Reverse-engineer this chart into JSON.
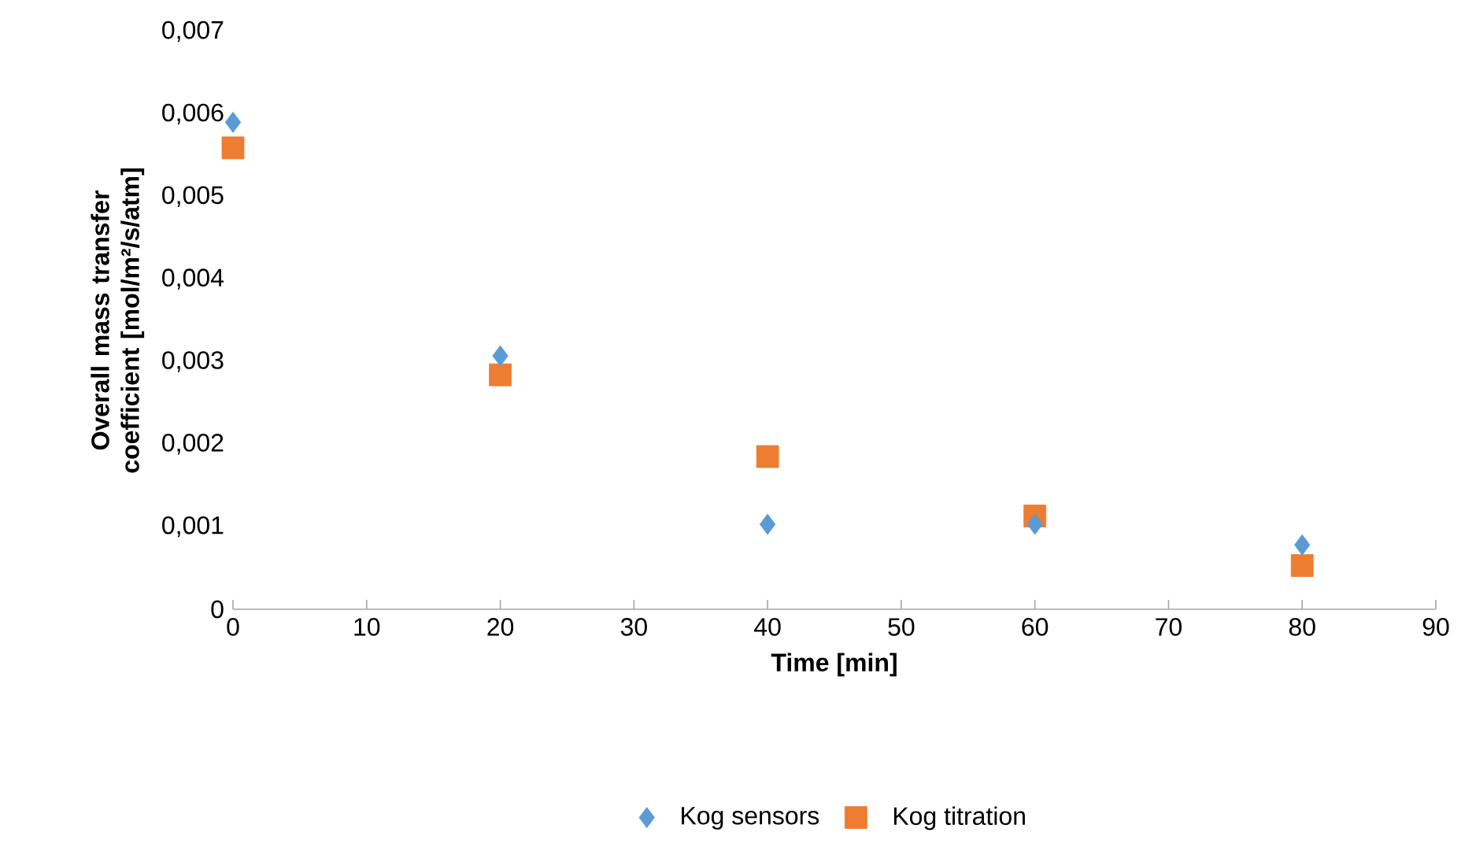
{
  "chart_data": {
    "type": "scatter",
    "xlabel": "Time [min]",
    "ylabel": "Overall mass transfer coefficient [mol/m²/s/atm]",
    "x": [
      0,
      20,
      40,
      60,
      80
    ],
    "xlim": [
      0,
      90
    ],
    "xticks": [
      0,
      10,
      20,
      30,
      40,
      50,
      60,
      70,
      80,
      90
    ],
    "ylim": [
      0,
      0.007
    ],
    "yticks": [
      0,
      {
        "value": 0.001,
        "label": "0,001"
      },
      {
        "value": 0.002,
        "label": "0,002"
      },
      {
        "value": 0.003,
        "label": "0,003"
      },
      {
        "value": 0.004,
        "label": "0,004"
      },
      {
        "value": 0.005,
        "label": "0,005"
      },
      {
        "value": 0.006,
        "label": "0,006"
      },
      {
        "value": 0.007,
        "label": "0,007"
      }
    ],
    "legend": "bottom",
    "series": [
      {
        "name": "Kog sensors",
        "color": "#5b9bd5",
        "marker": "diamond",
        "values": [
          0.0059,
          0.00307,
          0.00103,
          0.00103,
          0.00078
        ]
      },
      {
        "name": "Kog titration",
        "color": "#ed7d31",
        "marker": "square",
        "values": [
          0.00559,
          0.00284,
          0.00185,
          0.00113,
          0.00053
        ]
      }
    ]
  }
}
